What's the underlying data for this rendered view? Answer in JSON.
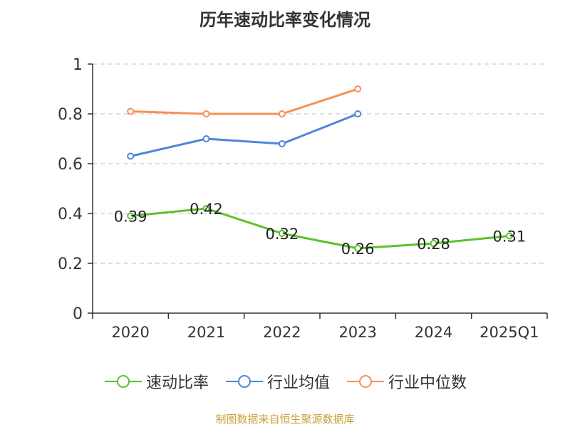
{
  "chart_data": {
    "type": "line",
    "title": "历年速动比率变化情况",
    "categories": [
      "2020",
      "2021",
      "2022",
      "2023",
      "2024",
      "2025Q1"
    ],
    "ylim": [
      0,
      1
    ],
    "yticks": [
      "0",
      "0.2",
      "0.4",
      "0.6",
      "0.8",
      "1"
    ],
    "ytick_values": [
      0,
      0.2,
      0.4,
      0.6,
      0.8,
      1
    ],
    "grid": true,
    "legend_position": "bottom",
    "series": [
      {
        "name": "速动比率",
        "color": "#5cc12b",
        "values": [
          0.39,
          0.42,
          0.32,
          0.26,
          0.28,
          0.31
        ],
        "labels": [
          "0.39",
          "0.42",
          "0.32",
          "0.26",
          "0.28",
          "0.31"
        ],
        "show_labels": true
      },
      {
        "name": "行业均值",
        "color": "#4f86d9",
        "values": [
          0.63,
          0.7,
          0.68,
          0.8,
          null,
          null
        ],
        "show_labels": false
      },
      {
        "name": "行业中位数",
        "color": "#f7905a",
        "values": [
          0.81,
          0.8,
          0.8,
          0.9,
          null,
          null
        ],
        "show_labels": false
      }
    ]
  },
  "source": "制图数据来自恒生聚源数据库"
}
